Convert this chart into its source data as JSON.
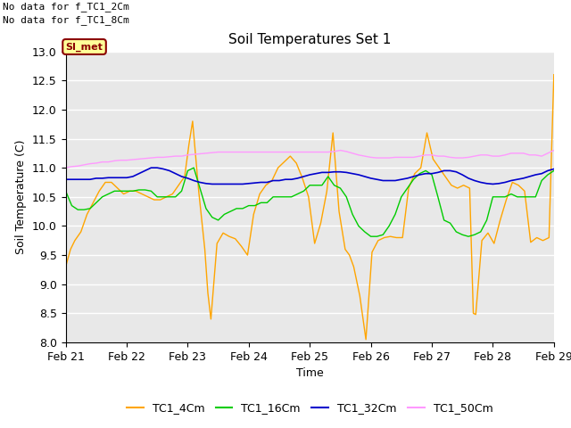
{
  "title": "Soil Temperatures Set 1",
  "xlabel": "Time",
  "ylabel": "Soil Temperature (C)",
  "ylim": [
    8.0,
    13.0
  ],
  "yticks": [
    8.0,
    8.5,
    9.0,
    9.5,
    10.0,
    10.5,
    11.0,
    11.5,
    12.0,
    12.5,
    13.0
  ],
  "xtick_labels": [
    "Feb 21",
    "Feb 22",
    "Feb 23",
    "Feb 24",
    "Feb 25",
    "Feb 26",
    "Feb 27",
    "Feb 28",
    "Feb 29"
  ],
  "background_color": "#e8e8e8",
  "no_data_text": [
    "No data for f_TC1_2Cm",
    "No data for f_TC1_8Cm"
  ],
  "si_met_label": "SI_met",
  "legend_entries": [
    "TC1_4Cm",
    "TC1_16Cm",
    "TC1_32Cm",
    "TC1_50Cm"
  ],
  "colors": {
    "TC1_4Cm": "#FFA500",
    "TC1_16Cm": "#00CC00",
    "TC1_32Cm": "#0000CC",
    "TC1_50Cm": "#FF99FF"
  },
  "TC1_4Cm": {
    "x": [
      0,
      0.08,
      0.15,
      0.25,
      0.35,
      0.45,
      0.55,
      0.65,
      0.75,
      0.85,
      0.95,
      1.05,
      1.15,
      1.25,
      1.35,
      1.45,
      1.55,
      1.65,
      1.75,
      1.85,
      1.95,
      2.02,
      2.08,
      2.18,
      2.28,
      2.33,
      2.38,
      2.48,
      2.58,
      2.68,
      2.78,
      2.88,
      2.98,
      3.08,
      3.18,
      3.28,
      3.38,
      3.48,
      3.58,
      3.68,
      3.78,
      3.88,
      3.98,
      4.08,
      4.18,
      4.28,
      4.38,
      4.48,
      4.58,
      4.65,
      4.72,
      4.82,
      4.92,
      5.02,
      5.12,
      5.22,
      5.32,
      5.42,
      5.52,
      5.62,
      5.72,
      5.82,
      5.92,
      6.02,
      6.12,
      6.22,
      6.32,
      6.42,
      6.52,
      6.62,
      6.68,
      6.72,
      6.82,
      6.92,
      7.02,
      7.12,
      7.22,
      7.32,
      7.42,
      7.52,
      7.62,
      7.72,
      7.82,
      7.92,
      8.0
    ],
    "y": [
      9.3,
      9.6,
      9.75,
      9.9,
      10.2,
      10.4,
      10.6,
      10.75,
      10.75,
      10.65,
      10.55,
      10.6,
      10.6,
      10.55,
      10.5,
      10.45,
      10.45,
      10.5,
      10.55,
      10.7,
      10.85,
      11.4,
      11.8,
      10.6,
      9.6,
      8.85,
      8.4,
      9.7,
      9.88,
      9.82,
      9.78,
      9.65,
      9.5,
      10.2,
      10.55,
      10.7,
      10.78,
      11.0,
      11.1,
      11.2,
      11.08,
      10.82,
      10.5,
      9.7,
      10.05,
      10.6,
      11.6,
      10.25,
      9.6,
      9.5,
      9.3,
      8.8,
      8.05,
      9.55,
      9.75,
      9.8,
      9.82,
      9.8,
      9.8,
      10.65,
      10.9,
      11.0,
      11.6,
      11.15,
      11.0,
      10.85,
      10.7,
      10.65,
      10.7,
      10.65,
      8.5,
      8.48,
      9.75,
      9.88,
      9.7,
      10.1,
      10.45,
      10.75,
      10.7,
      10.6,
      9.72,
      9.8,
      9.75,
      9.8,
      12.6
    ]
  },
  "TC1_16Cm": {
    "x": [
      0,
      0.1,
      0.2,
      0.3,
      0.4,
      0.5,
      0.6,
      0.7,
      0.8,
      0.9,
      1.0,
      1.1,
      1.2,
      1.3,
      1.4,
      1.5,
      1.6,
      1.7,
      1.8,
      1.9,
      2.0,
      2.1,
      2.2,
      2.3,
      2.4,
      2.5,
      2.6,
      2.7,
      2.8,
      2.9,
      3.0,
      3.1,
      3.2,
      3.3,
      3.4,
      3.5,
      3.6,
      3.7,
      3.8,
      3.9,
      4.0,
      4.1,
      4.2,
      4.3,
      4.4,
      4.5,
      4.6,
      4.7,
      4.8,
      4.9,
      5.0,
      5.1,
      5.2,
      5.3,
      5.4,
      5.5,
      5.6,
      5.7,
      5.8,
      5.9,
      6.0,
      6.1,
      6.2,
      6.3,
      6.4,
      6.5,
      6.6,
      6.7,
      6.8,
      6.9,
      7.0,
      7.1,
      7.2,
      7.3,
      7.4,
      7.5,
      7.6,
      7.7,
      7.8,
      7.9,
      8.0
    ],
    "y": [
      10.6,
      10.35,
      10.28,
      10.28,
      10.3,
      10.4,
      10.5,
      10.55,
      10.6,
      10.6,
      10.6,
      10.6,
      10.62,
      10.62,
      10.6,
      10.5,
      10.5,
      10.5,
      10.5,
      10.6,
      10.95,
      11.0,
      10.65,
      10.3,
      10.15,
      10.1,
      10.2,
      10.25,
      10.3,
      10.3,
      10.35,
      10.35,
      10.4,
      10.4,
      10.5,
      10.5,
      10.5,
      10.5,
      10.55,
      10.6,
      10.7,
      10.7,
      10.7,
      10.85,
      10.7,
      10.65,
      10.5,
      10.2,
      10.0,
      9.9,
      9.82,
      9.82,
      9.85,
      10.0,
      10.2,
      10.5,
      10.65,
      10.8,
      10.9,
      10.95,
      10.88,
      10.5,
      10.1,
      10.05,
      9.9,
      9.85,
      9.82,
      9.85,
      9.9,
      10.1,
      10.5,
      10.5,
      10.5,
      10.55,
      10.5,
      10.5,
      10.5,
      10.5,
      10.78,
      10.88,
      10.95
    ]
  },
  "TC1_32Cm": {
    "x": [
      0,
      0.1,
      0.2,
      0.3,
      0.4,
      0.5,
      0.6,
      0.7,
      0.8,
      0.9,
      1.0,
      1.1,
      1.2,
      1.3,
      1.4,
      1.5,
      1.6,
      1.7,
      1.8,
      1.9,
      2.0,
      2.1,
      2.2,
      2.3,
      2.4,
      2.5,
      2.6,
      2.7,
      2.8,
      2.9,
      3.0,
      3.1,
      3.2,
      3.3,
      3.4,
      3.5,
      3.6,
      3.7,
      3.8,
      3.9,
      4.0,
      4.1,
      4.2,
      4.3,
      4.4,
      4.5,
      4.6,
      4.7,
      4.8,
      4.9,
      5.0,
      5.1,
      5.2,
      5.3,
      5.4,
      5.5,
      5.6,
      5.7,
      5.8,
      5.9,
      6.0,
      6.1,
      6.2,
      6.3,
      6.4,
      6.5,
      6.6,
      6.7,
      6.8,
      6.9,
      7.0,
      7.1,
      7.2,
      7.3,
      7.4,
      7.5,
      7.6,
      7.7,
      7.8,
      7.9,
      8.0
    ],
    "y": [
      10.8,
      10.8,
      10.8,
      10.8,
      10.8,
      10.82,
      10.82,
      10.83,
      10.83,
      10.83,
      10.83,
      10.85,
      10.9,
      10.95,
      11.0,
      11.0,
      10.98,
      10.95,
      10.9,
      10.85,
      10.82,
      10.78,
      10.75,
      10.73,
      10.72,
      10.72,
      10.72,
      10.72,
      10.72,
      10.72,
      10.73,
      10.74,
      10.75,
      10.75,
      10.78,
      10.78,
      10.8,
      10.8,
      10.82,
      10.85,
      10.88,
      10.9,
      10.92,
      10.92,
      10.93,
      10.93,
      10.92,
      10.9,
      10.88,
      10.85,
      10.82,
      10.8,
      10.78,
      10.78,
      10.78,
      10.8,
      10.82,
      10.85,
      10.88,
      10.9,
      10.9,
      10.92,
      10.95,
      10.95,
      10.93,
      10.88,
      10.82,
      10.78,
      10.75,
      10.73,
      10.72,
      10.73,
      10.75,
      10.78,
      10.8,
      10.82,
      10.85,
      10.88,
      10.9,
      10.95,
      10.98
    ]
  },
  "TC1_50Cm": {
    "x": [
      0,
      0.1,
      0.2,
      0.3,
      0.4,
      0.5,
      0.6,
      0.7,
      0.8,
      0.9,
      1.0,
      1.1,
      1.2,
      1.3,
      1.4,
      1.5,
      1.6,
      1.7,
      1.8,
      1.9,
      2.0,
      2.1,
      2.2,
      2.3,
      2.4,
      2.5,
      2.6,
      2.7,
      2.8,
      2.9,
      3.0,
      3.1,
      3.2,
      3.3,
      3.4,
      3.5,
      3.6,
      3.7,
      3.8,
      3.9,
      4.0,
      4.1,
      4.2,
      4.3,
      4.4,
      4.5,
      4.6,
      4.7,
      4.8,
      4.9,
      5.0,
      5.1,
      5.2,
      5.3,
      5.4,
      5.5,
      5.6,
      5.7,
      5.8,
      5.9,
      6.0,
      6.1,
      6.2,
      6.3,
      6.4,
      6.5,
      6.6,
      6.7,
      6.8,
      6.9,
      7.0,
      7.1,
      7.2,
      7.3,
      7.4,
      7.5,
      7.6,
      7.7,
      7.8,
      7.9,
      8.0
    ],
    "y": [
      11.0,
      11.02,
      11.03,
      11.05,
      11.07,
      11.08,
      11.1,
      11.1,
      11.12,
      11.13,
      11.13,
      11.14,
      11.15,
      11.16,
      11.17,
      11.18,
      11.18,
      11.19,
      11.2,
      11.2,
      11.22,
      11.23,
      11.24,
      11.25,
      11.26,
      11.27,
      11.27,
      11.27,
      11.27,
      11.27,
      11.27,
      11.27,
      11.27,
      11.27,
      11.27,
      11.27,
      11.27,
      11.27,
      11.27,
      11.27,
      11.27,
      11.27,
      11.27,
      11.27,
      11.28,
      11.3,
      11.28,
      11.25,
      11.22,
      11.2,
      11.18,
      11.17,
      11.17,
      11.17,
      11.18,
      11.18,
      11.18,
      11.18,
      11.2,
      11.22,
      11.22,
      11.2,
      11.2,
      11.18,
      11.17,
      11.17,
      11.18,
      11.2,
      11.22,
      11.22,
      11.2,
      11.2,
      11.22,
      11.25,
      11.25,
      11.25,
      11.22,
      11.22,
      11.2,
      11.25,
      11.3
    ]
  }
}
